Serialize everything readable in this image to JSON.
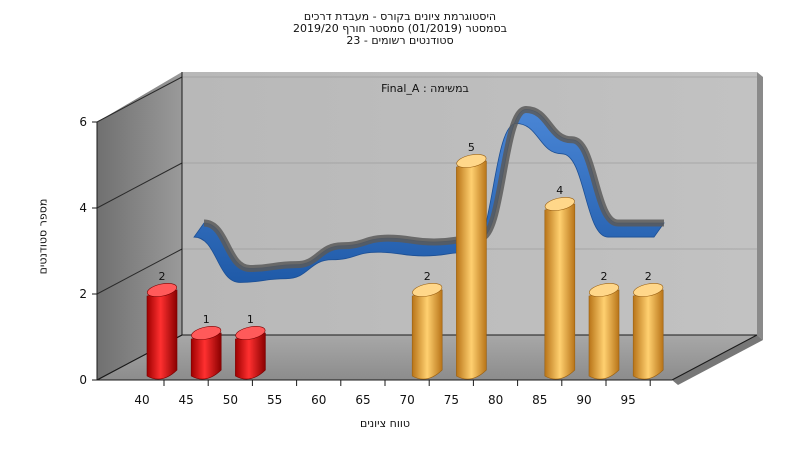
{
  "chart_data": {
    "type": "bar",
    "title": "היסטוגרמת ציונים בקורס - מעבדת דרכים",
    "subtitle_lines": [
      "בסמסטר  (01/2019)  סמסטר חורף 2019/20",
      "סטודנטים רשומים - 23"
    ],
    "annotation": "במשימה : Final_A",
    "xlabel": "טווח ציונים",
    "ylabel": "מספר סטודנטים",
    "x_ticks": [
      "40",
      "45",
      "50",
      "55",
      "60",
      "65",
      "70",
      "75",
      "80",
      "85",
      "90",
      "95"
    ],
    "y_ticks": [
      "0",
      "2",
      "4",
      "6"
    ],
    "ylim": [
      0,
      6
    ],
    "categories": [
      "40",
      "45",
      "50",
      "55",
      "60",
      "65",
      "70",
      "75",
      "80",
      "85",
      "90",
      "95"
    ],
    "values": [
      2,
      1,
      1,
      0,
      0,
      0,
      2,
      5,
      0,
      4,
      2,
      2
    ],
    "bar_colors": [
      "#e01818",
      "#e01818",
      "#e01818",
      "",
      "",
      "",
      "#e8a640",
      "#e8a640",
      "",
      "#e8a640",
      "#e8a640",
      "#e8a640"
    ],
    "curve": {
      "description": "smoothed ribbon following the distribution",
      "values": [
        2.8,
        1.6,
        1.7,
        2.2,
        2.4,
        2.3,
        2.4,
        5.8,
        5.0,
        2.8,
        2.8
      ]
    },
    "grid": false,
    "style": "3d"
  }
}
